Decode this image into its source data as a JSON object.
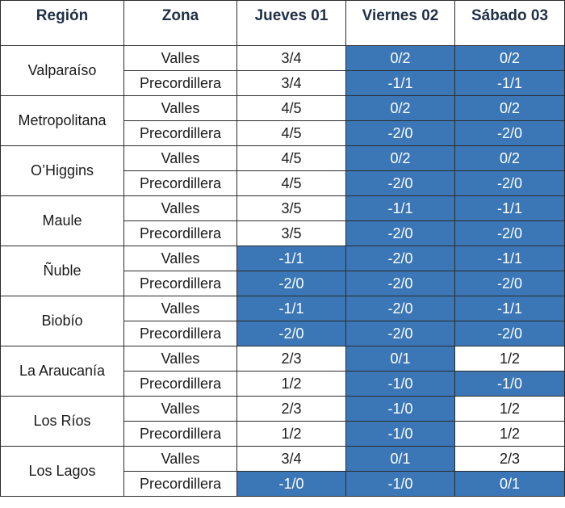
{
  "colors": {
    "highlight": "#3b76b6",
    "header_text": "#1f2f46",
    "border": "#2b2b2b"
  },
  "headers": [
    "Región",
    "Zona",
    "Jueves 01",
    "Viernes 02",
    "Sábado 03"
  ],
  "zones": [
    "Valles",
    "Precordillera"
  ],
  "regions": [
    {
      "name": "Valparaíso",
      "rows": [
        {
          "values": [
            "3/4",
            "0/2",
            "0/2"
          ],
          "highlight": [
            false,
            true,
            true
          ]
        },
        {
          "values": [
            "3/4",
            "-1/1",
            "-1/1"
          ],
          "highlight": [
            false,
            true,
            true
          ]
        }
      ]
    },
    {
      "name": "Metropolitana",
      "rows": [
        {
          "values": [
            "4/5",
            "0/2",
            "0/2"
          ],
          "highlight": [
            false,
            true,
            true
          ]
        },
        {
          "values": [
            "4/5",
            "-2/0",
            "-2/0"
          ],
          "highlight": [
            false,
            true,
            true
          ]
        }
      ]
    },
    {
      "name": "O’Higgins",
      "rows": [
        {
          "values": [
            "4/5",
            "0/2",
            "0/2"
          ],
          "highlight": [
            false,
            true,
            true
          ]
        },
        {
          "values": [
            "4/5",
            "-2/0",
            "-2/0"
          ],
          "highlight": [
            false,
            true,
            true
          ]
        }
      ]
    },
    {
      "name": "Maule",
      "rows": [
        {
          "values": [
            "3/5",
            "-1/1",
            "-1/1"
          ],
          "highlight": [
            false,
            true,
            true
          ]
        },
        {
          "values": [
            "3/5",
            "-2/0",
            "-2/0"
          ],
          "highlight": [
            false,
            true,
            true
          ]
        }
      ]
    },
    {
      "name": "Ñuble",
      "rows": [
        {
          "values": [
            "-1/1",
            "-2/0",
            "-1/1"
          ],
          "highlight": [
            true,
            true,
            true
          ]
        },
        {
          "values": [
            "-2/0",
            "-2/0",
            "-2/0"
          ],
          "highlight": [
            true,
            true,
            true
          ]
        }
      ]
    },
    {
      "name": "Biobío",
      "rows": [
        {
          "values": [
            "-1/1",
            "-2/0",
            "-1/1"
          ],
          "highlight": [
            true,
            true,
            true
          ]
        },
        {
          "values": [
            "-2/0",
            "-2/0",
            "-2/0"
          ],
          "highlight": [
            true,
            true,
            true
          ]
        }
      ]
    },
    {
      "name": "La Araucanía",
      "rows": [
        {
          "values": [
            "2/3",
            "0/1",
            "1/2"
          ],
          "highlight": [
            false,
            true,
            false
          ]
        },
        {
          "values": [
            "1/2",
            "-1/0",
            "-1/0"
          ],
          "highlight": [
            false,
            true,
            true
          ]
        }
      ]
    },
    {
      "name": "Los Ríos",
      "rows": [
        {
          "values": [
            "2/3",
            "-1/0",
            "1/2"
          ],
          "highlight": [
            false,
            true,
            false
          ]
        },
        {
          "values": [
            "1/2",
            "-1/0",
            "1/2"
          ],
          "highlight": [
            false,
            true,
            false
          ]
        }
      ]
    },
    {
      "name": "Los Lagos",
      "rows": [
        {
          "values": [
            "3/4",
            "0/1",
            "2/3"
          ],
          "highlight": [
            false,
            true,
            false
          ]
        },
        {
          "values": [
            "-1/0",
            "-1/0",
            "0/1"
          ],
          "highlight": [
            true,
            true,
            true
          ]
        }
      ]
    }
  ]
}
